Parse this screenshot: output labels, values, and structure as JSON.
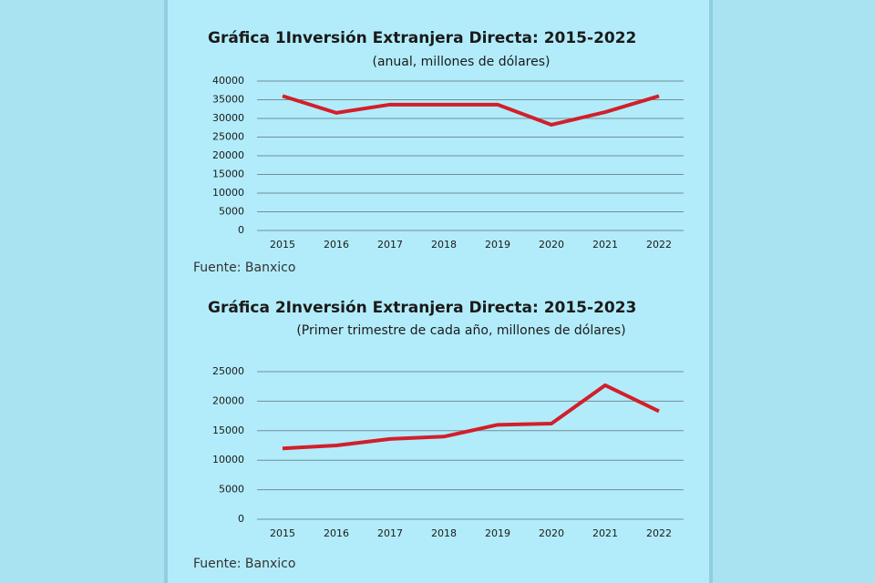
{
  "chart_data": [
    {
      "type": "line",
      "label": "Gráfica 1",
      "title": "Inversión Extranjera Directa: 2015-2022",
      "subtitle": "(anual, millones de dólares)",
      "categories": [
        "2015",
        "2016",
        "2017",
        "2018",
        "2019",
        "2020",
        "2021",
        "2022"
      ],
      "values": [
        36000,
        31500,
        33700,
        33700,
        33700,
        28300,
        31700,
        36000
      ],
      "color": "#d21f2b",
      "ylim": [
        0,
        40000
      ],
      "yticks": [
        0,
        5000,
        10000,
        15000,
        20000,
        25000,
        30000,
        35000,
        40000
      ],
      "grid": true,
      "source": "Fuente: Banxico"
    },
    {
      "type": "line",
      "label": "Gráfica 2",
      "title": "Inversión Extranjera Directa: 2015-2023",
      "subtitle": "(Primer trimestre de cada año, millones de dólares)",
      "categories": [
        "2015",
        "2016",
        "2017",
        "2018",
        "2019",
        "2020",
        "2021",
        "2022"
      ],
      "values": [
        12000,
        12500,
        13600,
        14000,
        16000,
        16200,
        22700,
        18300
      ],
      "color": "#d21f2b",
      "ylim": [
        0,
        25000
      ],
      "yticks": [
        0,
        5000,
        10000,
        15000,
        20000,
        25000
      ],
      "grid": true,
      "source": "Fuente: Banxico"
    }
  ]
}
